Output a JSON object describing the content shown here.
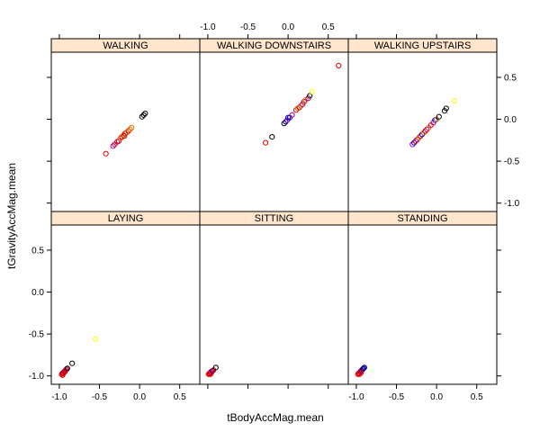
{
  "chart_data": {
    "type": "scatter",
    "layout": "lattice 3x2 panels, shared axes",
    "xlabel": "tBodyAccMag.mean",
    "ylabel": "tGravityAccMag.mean",
    "xlim": [
      -1.1,
      0.75
    ],
    "ylim": [
      -1.1,
      0.8
    ],
    "x_ticks": [
      {
        "value": -1.0,
        "label": "-1.0"
      },
      {
        "value": -0.5,
        "label": "-0.5"
      },
      {
        "value": 0.0,
        "label": "0.0"
      },
      {
        "value": 0.5,
        "label": "0.5"
      }
    ],
    "y_ticks": [
      {
        "value": -1.0,
        "label": "-1.0"
      },
      {
        "value": -0.5,
        "label": "-0.5"
      },
      {
        "value": 0.0,
        "label": "0.0"
      },
      {
        "value": 0.5,
        "label": "0.5"
      }
    ],
    "strip_color": "#ffe5cc",
    "colors": {
      "black": "#000000",
      "red": "#e00000",
      "orange": "#e07000",
      "blue": "#0000cc",
      "purple": "#a000a0",
      "yellow": "#ffff00"
    },
    "panels": [
      {
        "title": "LAYING",
        "points": [
          {
            "x": -0.97,
            "y": -0.98,
            "c": "red"
          },
          {
            "x": -0.96,
            "y": -0.97,
            "c": "red"
          },
          {
            "x": -0.95,
            "y": -0.96,
            "c": "red"
          },
          {
            "x": -0.94,
            "y": -0.95,
            "c": "blue"
          },
          {
            "x": -0.93,
            "y": -0.94,
            "c": "red"
          },
          {
            "x": -0.92,
            "y": -0.93,
            "c": "purple"
          },
          {
            "x": -0.91,
            "y": -0.92,
            "c": "red"
          },
          {
            "x": -0.96,
            "y": -0.99,
            "c": "red"
          },
          {
            "x": -0.95,
            "y": -0.97,
            "c": "red"
          },
          {
            "x": -0.93,
            "y": -0.95,
            "c": "red"
          },
          {
            "x": -0.9,
            "y": -0.91,
            "c": "black"
          },
          {
            "x": -0.84,
            "y": -0.85,
            "c": "black"
          },
          {
            "x": -0.55,
            "y": -0.56,
            "c": "yellow"
          }
        ]
      },
      {
        "title": "SITTING",
        "points": [
          {
            "x": -0.99,
            "y": -0.98,
            "c": "red"
          },
          {
            "x": -0.98,
            "y": -0.97,
            "c": "red"
          },
          {
            "x": -0.97,
            "y": -0.96,
            "c": "red"
          },
          {
            "x": -0.97,
            "y": -0.98,
            "c": "red"
          },
          {
            "x": -0.96,
            "y": -0.95,
            "c": "purple"
          },
          {
            "x": -0.95,
            "y": -0.95,
            "c": "red"
          },
          {
            "x": -0.96,
            "y": -0.97,
            "c": "red"
          },
          {
            "x": -0.94,
            "y": -0.94,
            "c": "blue"
          },
          {
            "x": -0.93,
            "y": -0.93,
            "c": "red"
          },
          {
            "x": -0.9,
            "y": -0.9,
            "c": "black"
          }
        ]
      },
      {
        "title": "STANDING",
        "points": [
          {
            "x": -0.98,
            "y": -0.98,
            "c": "red"
          },
          {
            "x": -0.97,
            "y": -0.97,
            "c": "red"
          },
          {
            "x": -0.96,
            "y": -0.96,
            "c": "red"
          },
          {
            "x": -0.95,
            "y": -0.95,
            "c": "red"
          },
          {
            "x": -0.94,
            "y": -0.94,
            "c": "blue"
          },
          {
            "x": -0.93,
            "y": -0.93,
            "c": "purple"
          },
          {
            "x": -0.92,
            "y": -0.92,
            "c": "blue"
          },
          {
            "x": -0.91,
            "y": -0.91,
            "c": "black"
          },
          {
            "x": -0.96,
            "y": -0.98,
            "c": "red"
          },
          {
            "x": -0.94,
            "y": -0.96,
            "c": "red"
          },
          {
            "x": -0.9,
            "y": -0.9,
            "c": "blue"
          }
        ]
      },
      {
        "title": "WALKING",
        "points": [
          {
            "x": -0.42,
            "y": -0.41,
            "c": "red"
          },
          {
            "x": -0.33,
            "y": -0.32,
            "c": "purple"
          },
          {
            "x": -0.31,
            "y": -0.3,
            "c": "red"
          },
          {
            "x": -0.28,
            "y": -0.27,
            "c": "purple"
          },
          {
            "x": -0.26,
            "y": -0.26,
            "c": "red"
          },
          {
            "x": -0.24,
            "y": -0.23,
            "c": "orange"
          },
          {
            "x": -0.22,
            "y": -0.21,
            "c": "red"
          },
          {
            "x": -0.2,
            "y": -0.19,
            "c": "orange"
          },
          {
            "x": -0.18,
            "y": -0.17,
            "c": "red"
          },
          {
            "x": -0.16,
            "y": -0.16,
            "c": "orange"
          },
          {
            "x": -0.14,
            "y": -0.14,
            "c": "red"
          },
          {
            "x": -0.12,
            "y": -0.12,
            "c": "orange"
          },
          {
            "x": -0.1,
            "y": -0.1,
            "c": "orange"
          },
          {
            "x": -0.19,
            "y": -0.2,
            "c": "red"
          },
          {
            "x": 0.03,
            "y": 0.03,
            "c": "black"
          },
          {
            "x": 0.05,
            "y": 0.05,
            "c": "black"
          },
          {
            "x": 0.07,
            "y": 0.07,
            "c": "black"
          }
        ]
      },
      {
        "title": "WALKING_DOWNSTAIRS",
        "points": [
          {
            "x": -0.28,
            "y": -0.28,
            "c": "red"
          },
          {
            "x": -0.2,
            "y": -0.21,
            "c": "black"
          },
          {
            "x": -0.05,
            "y": -0.05,
            "c": "black"
          },
          {
            "x": -0.03,
            "y": -0.03,
            "c": "blue"
          },
          {
            "x": -0.01,
            "y": -0.01,
            "c": "purple"
          },
          {
            "x": 0.0,
            "y": 0.02,
            "c": "blue"
          },
          {
            "x": 0.02,
            "y": 0.02,
            "c": "blue"
          },
          {
            "x": 0.05,
            "y": 0.05,
            "c": "purple"
          },
          {
            "x": 0.1,
            "y": 0.11,
            "c": "red"
          },
          {
            "x": 0.12,
            "y": 0.13,
            "c": "orange"
          },
          {
            "x": 0.14,
            "y": 0.14,
            "c": "red"
          },
          {
            "x": 0.16,
            "y": 0.16,
            "c": "orange"
          },
          {
            "x": 0.18,
            "y": 0.18,
            "c": "purple"
          },
          {
            "x": 0.2,
            "y": 0.21,
            "c": "red"
          },
          {
            "x": 0.22,
            "y": 0.23,
            "c": "orange"
          },
          {
            "x": 0.25,
            "y": 0.25,
            "c": "purple"
          },
          {
            "x": 0.27,
            "y": 0.28,
            "c": "black"
          },
          {
            "x": 0.3,
            "y": 0.33,
            "c": "yellow"
          },
          {
            "x": 0.63,
            "y": 0.64,
            "c": "red"
          }
        ]
      },
      {
        "title": "WALKING_UPSTAIRS",
        "points": [
          {
            "x": -0.3,
            "y": -0.3,
            "c": "purple"
          },
          {
            "x": -0.28,
            "y": -0.28,
            "c": "blue"
          },
          {
            "x": -0.26,
            "y": -0.26,
            "c": "red"
          },
          {
            "x": -0.24,
            "y": -0.24,
            "c": "purple"
          },
          {
            "x": -0.22,
            "y": -0.22,
            "c": "orange"
          },
          {
            "x": -0.2,
            "y": -0.2,
            "c": "red"
          },
          {
            "x": -0.18,
            "y": -0.18,
            "c": "blue"
          },
          {
            "x": -0.16,
            "y": -0.16,
            "c": "orange"
          },
          {
            "x": -0.14,
            "y": -0.14,
            "c": "red"
          },
          {
            "x": -0.12,
            "y": -0.12,
            "c": "purple"
          },
          {
            "x": -0.1,
            "y": -0.1,
            "c": "orange"
          },
          {
            "x": -0.07,
            "y": -0.07,
            "c": "red"
          },
          {
            "x": -0.04,
            "y": -0.04,
            "c": "purple"
          },
          {
            "x": -0.02,
            "y": -0.01,
            "c": "blue"
          },
          {
            "x": 0.0,
            "y": 0.0,
            "c": "orange"
          },
          {
            "x": 0.03,
            "y": 0.03,
            "c": "black"
          },
          {
            "x": 0.1,
            "y": 0.1,
            "c": "black"
          },
          {
            "x": 0.12,
            "y": 0.13,
            "c": "black"
          },
          {
            "x": 0.22,
            "y": 0.22,
            "c": "yellow"
          }
        ]
      }
    ]
  }
}
